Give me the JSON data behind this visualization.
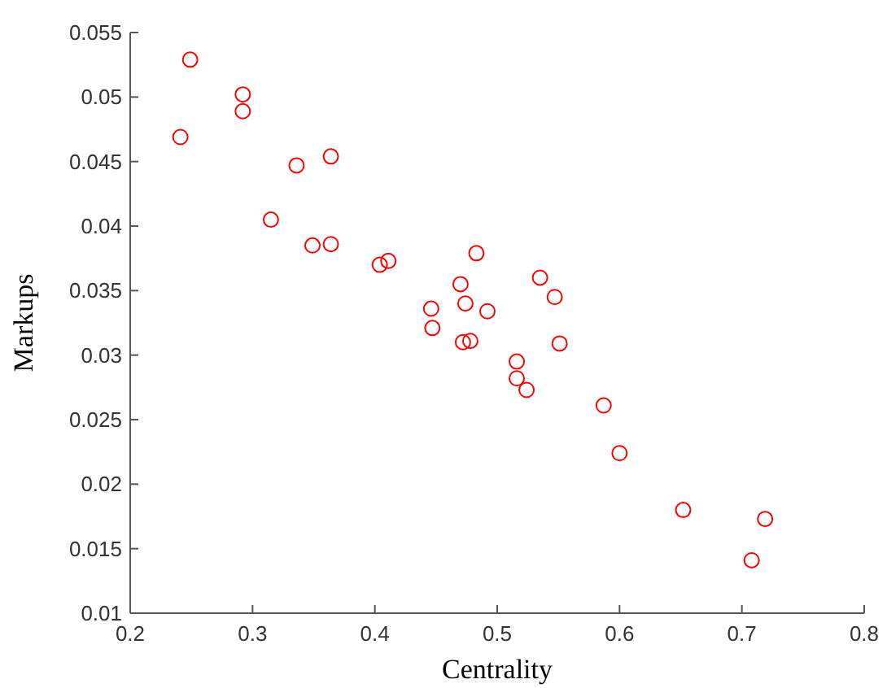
{
  "chart_data": {
    "type": "scatter",
    "xlabel": "Centrality",
    "ylabel": "Markups",
    "xlim": [
      0.2,
      0.8
    ],
    "ylim": [
      0.01,
      0.055
    ],
    "xticks": [
      0.2,
      0.3,
      0.4,
      0.5,
      0.6,
      0.7,
      0.8
    ],
    "yticks": [
      0.01,
      0.015,
      0.02,
      0.025,
      0.03,
      0.035,
      0.04,
      0.045,
      0.05,
      0.055
    ],
    "marker": "circle",
    "grid": false,
    "series": [
      {
        "color": "#ff0000",
        "x": [
          0.241,
          0.249,
          0.292,
          0.292,
          0.315,
          0.336,
          0.349,
          0.364,
          0.364,
          0.404,
          0.411,
          0.446,
          0.447,
          0.47,
          0.472,
          0.474,
          0.478,
          0.483,
          0.492,
          0.516,
          0.516,
          0.524,
          0.535,
          0.547,
          0.551,
          0.587,
          0.6,
          0.652,
          0.708,
          0.719
        ],
        "values": [
          0.0469,
          0.0529,
          0.0502,
          0.0489,
          0.0405,
          0.0447,
          0.0385,
          0.0454,
          0.0386,
          0.037,
          0.0373,
          0.0336,
          0.0321,
          0.0355,
          0.031,
          0.034,
          0.0311,
          0.0379,
          0.0334,
          0.0295,
          0.0282,
          0.0273,
          0.036,
          0.0345,
          0.0309,
          0.0261,
          0.0224,
          0.018,
          0.0141,
          0.0173
        ]
      }
    ]
  }
}
